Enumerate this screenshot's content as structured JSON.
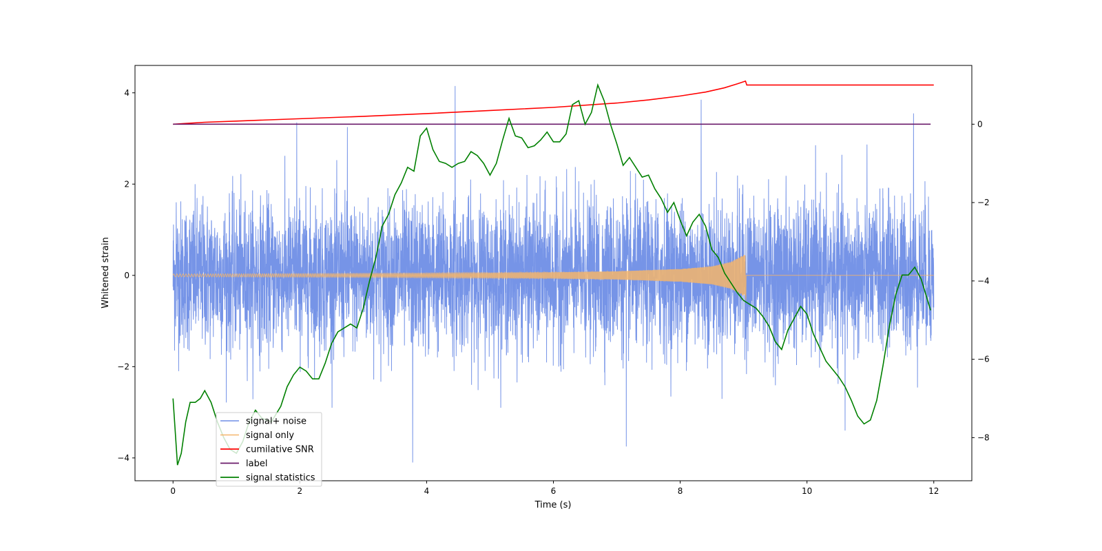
{
  "chart_data": {
    "type": "line",
    "title": "",
    "xlabel": "Time (s)",
    "ylabel_left": "Whitened strain",
    "ylabel_right": "",
    "xlim": [
      -0.6,
      12.6
    ],
    "ylim_left": [
      -4.5,
      4.6
    ],
    "ylim_right": [
      -9.1,
      1.5
    ],
    "x_ticks": [
      0,
      2,
      4,
      6,
      8,
      10,
      12
    ],
    "y_ticks_left": [
      -4,
      -2,
      0,
      2,
      4
    ],
    "y_ticks_right": [
      -8,
      -6,
      -4,
      -2,
      0
    ],
    "grid": false,
    "legend_position": "lower-left",
    "series": [
      {
        "name": "signal+ noise",
        "color": "#6f8ee6",
        "axis": "left",
        "kind": "noise",
        "x_range": [
          0,
          12
        ],
        "typical_amplitude": 1.6,
        "spikes": [
          [
            0.05,
            1.6
          ],
          [
            1.95,
            3.35
          ],
          [
            2.75,
            3.25
          ],
          [
            3.78,
            -4.1
          ],
          [
            4.45,
            4.15
          ],
          [
            7.15,
            -3.75
          ],
          [
            8.33,
            3.85
          ],
          [
            10.6,
            -3.4
          ],
          [
            11.68,
            3.55
          ]
        ]
      },
      {
        "name": "signal only",
        "color": "#f5b56b",
        "axis": "left",
        "kind": "chirp",
        "x_range": [
          0,
          12
        ],
        "chirp_end": 9.03,
        "envelope": [
          [
            0,
            0.03
          ],
          [
            2,
            0.04
          ],
          [
            4,
            0.05
          ],
          [
            6,
            0.07
          ],
          [
            7,
            0.09
          ],
          [
            8,
            0.14
          ],
          [
            8.5,
            0.2
          ],
          [
            8.8,
            0.3
          ],
          [
            9.0,
            0.45
          ]
        ]
      },
      {
        "name": "cumilative SNR",
        "color": "#ff0000",
        "axis": "right",
        "x": [
          0,
          0.5,
          1,
          2,
          3,
          4,
          5,
          6,
          7,
          7.5,
          8,
          8.4,
          8.7,
          8.9,
          9.03,
          9.05,
          12
        ],
        "y": [
          0.0,
          0.05,
          0.08,
          0.14,
          0.2,
          0.27,
          0.35,
          0.43,
          0.54,
          0.62,
          0.72,
          0.82,
          0.93,
          1.03,
          1.1,
          1.0,
          1.0
        ]
      },
      {
        "name": "label",
        "color": "#6a1a6a",
        "axis": "right",
        "x": [
          0,
          11.95
        ],
        "y": [
          0,
          0
        ]
      },
      {
        "name": "signal statistics",
        "color": "#008000",
        "axis": "right",
        "x": [
          0,
          0.07,
          0.13,
          0.2,
          0.27,
          0.35,
          0.43,
          0.5,
          0.6,
          0.7,
          0.8,
          0.9,
          1.0,
          1.1,
          1.2,
          1.3,
          1.4,
          1.55,
          1.7,
          1.8,
          1.9,
          2.0,
          2.1,
          2.2,
          2.3,
          2.4,
          2.5,
          2.6,
          2.7,
          2.8,
          2.9,
          3.0,
          3.1,
          3.2,
          3.3,
          3.4,
          3.5,
          3.6,
          3.7,
          3.8,
          3.9,
          4.0,
          4.1,
          4.2,
          4.3,
          4.4,
          4.5,
          4.6,
          4.7,
          4.8,
          4.9,
          5.0,
          5.1,
          5.2,
          5.3,
          5.4,
          5.5,
          5.6,
          5.7,
          5.8,
          5.9,
          6.0,
          6.1,
          6.2,
          6.3,
          6.4,
          6.5,
          6.6,
          6.7,
          6.8,
          6.9,
          7.0,
          7.1,
          7.2,
          7.3,
          7.4,
          7.5,
          7.6,
          7.7,
          7.8,
          7.9,
          8.0,
          8.1,
          8.2,
          8.3,
          8.4,
          8.5,
          8.6,
          8.7,
          8.8,
          8.9,
          9.0,
          9.1,
          9.2,
          9.3,
          9.4,
          9.5,
          9.6,
          9.7,
          9.8,
          9.9,
          10.0,
          10.1,
          10.2,
          10.3,
          10.4,
          10.5,
          10.6,
          10.7,
          10.8,
          10.9,
          11.0,
          11.1,
          11.2,
          11.3,
          11.4,
          11.5,
          11.6,
          11.7,
          11.8,
          11.95
        ],
        "y": [
          -7.0,
          -8.7,
          -8.4,
          -7.6,
          -7.1,
          -7.1,
          -7.0,
          -6.8,
          -7.1,
          -7.6,
          -8.0,
          -8.3,
          -8.4,
          -8.1,
          -7.6,
          -7.3,
          -7.5,
          -7.6,
          -7.2,
          -6.7,
          -6.4,
          -6.2,
          -6.3,
          -6.5,
          -6.5,
          -6.1,
          -5.6,
          -5.3,
          -5.2,
          -5.1,
          -5.2,
          -4.7,
          -4.0,
          -3.4,
          -2.6,
          -2.3,
          -1.8,
          -1.5,
          -1.1,
          -1.2,
          -0.3,
          -0.1,
          -0.65,
          -0.95,
          -1.0,
          -1.1,
          -1.0,
          -0.95,
          -0.7,
          -0.8,
          -1.0,
          -1.3,
          -1.0,
          -0.4,
          0.15,
          -0.3,
          -0.35,
          -0.6,
          -0.55,
          -0.4,
          -0.2,
          -0.45,
          -0.45,
          -0.25,
          0.5,
          0.6,
          0.0,
          0.3,
          1.0,
          0.6,
          0.0,
          -0.5,
          -1.05,
          -0.85,
          -1.1,
          -1.35,
          -1.3,
          -1.65,
          -1.9,
          -2.25,
          -2.0,
          -2.45,
          -2.85,
          -2.5,
          -2.3,
          -2.6,
          -3.2,
          -3.4,
          -3.8,
          -4.05,
          -4.3,
          -4.5,
          -4.6,
          -4.7,
          -4.9,
          -5.15,
          -5.55,
          -5.75,
          -5.25,
          -4.95,
          -4.65,
          -4.85,
          -5.35,
          -5.7,
          -6.05,
          -6.25,
          -6.45,
          -6.7,
          -7.05,
          -7.45,
          -7.65,
          -7.55,
          -7.05,
          -6.15,
          -5.15,
          -4.35,
          -3.85,
          -3.85,
          -3.65,
          -3.95,
          -4.75
        ]
      }
    ]
  }
}
